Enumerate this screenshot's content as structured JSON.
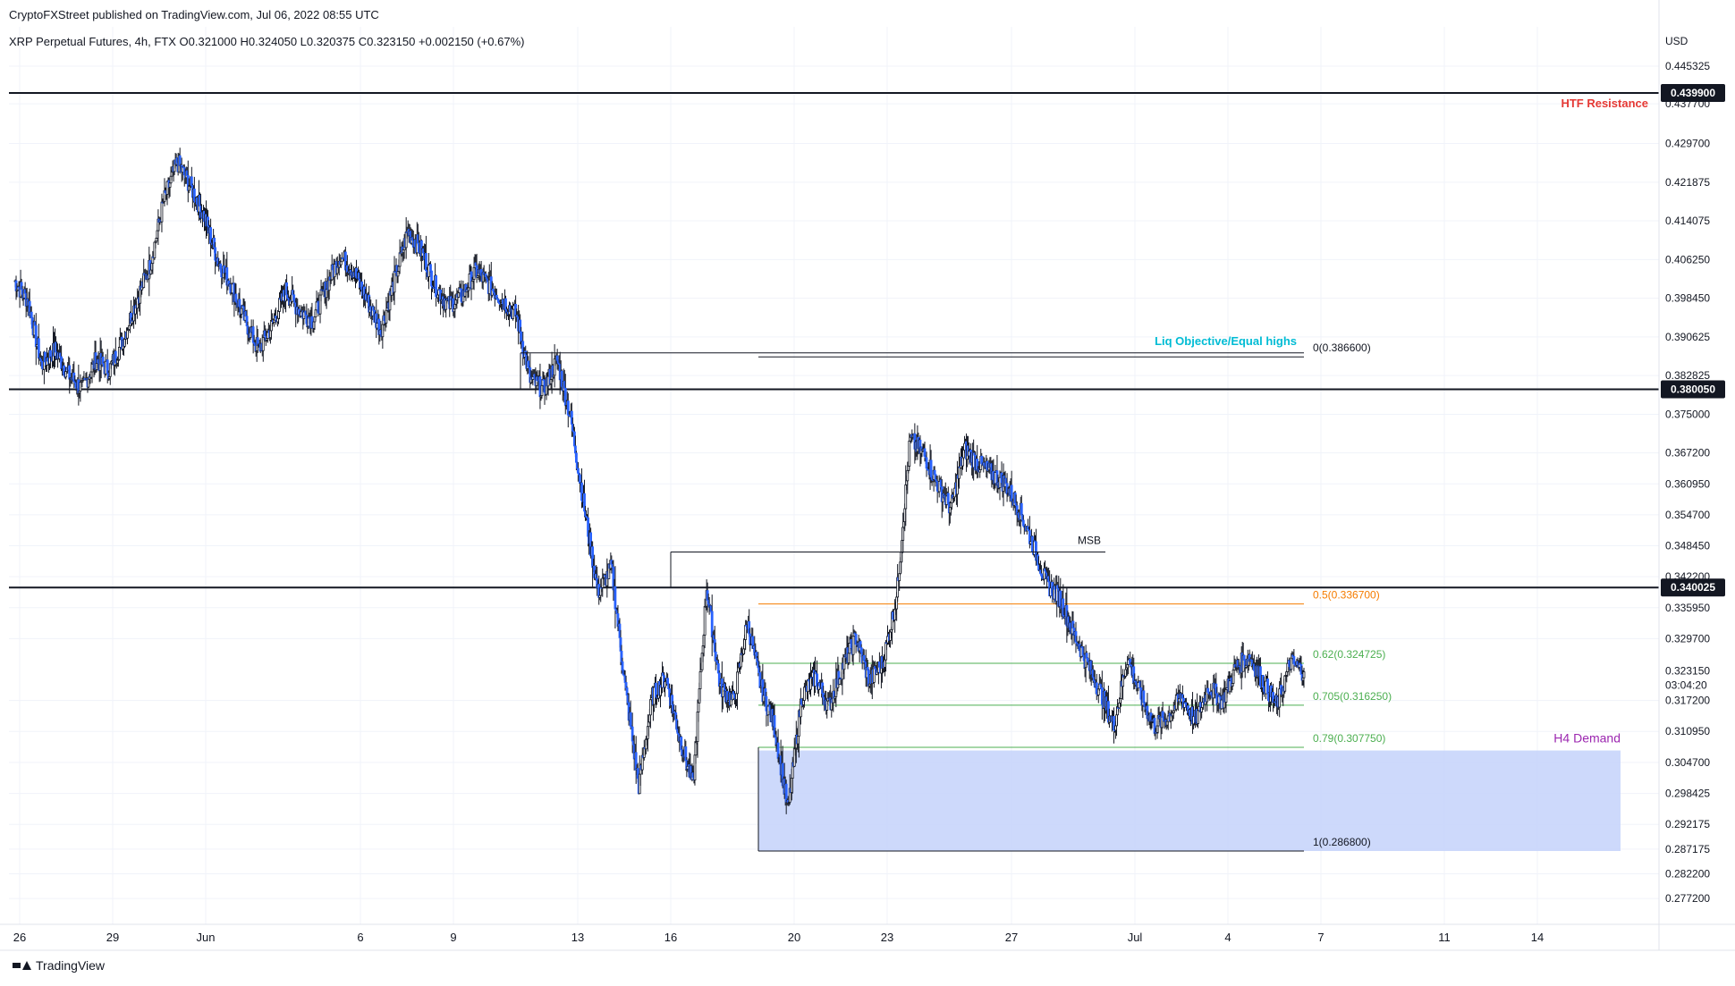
{
  "header": {
    "publisher": "CryptoFXStreet published on TradingView.com, Jul 06, 2022 08:55 UTC",
    "symbol_line": "XRP Perpetual Futures, 4h, FTX  O0.321000  H0.324050  L0.320375  C0.323150  +0.002150 (+0.67%)"
  },
  "footer": {
    "brand": "TradingView"
  },
  "colors": {
    "bull": "#ffffff",
    "bear": "#2962ff",
    "wick": "#131722",
    "orange": "#f57c00",
    "green": "#4caf50",
    "resistance_text": "#e53935",
    "liq_text": "#00bcd4",
    "demand_text": "#9c27b0",
    "demand_fill": "#c8d5fb"
  },
  "chart_data": {
    "type": "candlestick",
    "currency": "USD",
    "ylim": [
      0.2735,
      0.45
    ],
    "y_ticks": [
      0.445325,
      0.4377,
      0.4297,
      0.421875,
      0.414075,
      0.40625,
      0.39845,
      0.390625,
      0.382825,
      0.375,
      0.3672,
      0.36095,
      0.3547,
      0.34845,
      0.3422,
      0.33595,
      0.3297,
      0.3172,
      0.31095,
      0.3047,
      0.298425,
      0.292175,
      0.287175,
      0.2822,
      0.2772
    ],
    "y_tick_labels": [
      "0.445325",
      "0.437700",
      "0.429700",
      "0.421875",
      "0.414075",
      "0.406250",
      "0.398450",
      "0.390625",
      "0.382825",
      "0.375000",
      "0.367200",
      "0.360950",
      "0.354700",
      "0.348450",
      "0.342200",
      "0.335950",
      "0.329700",
      "0.317200",
      "0.310950",
      "0.304700",
      "0.298425",
      "0.292175",
      "0.287175",
      "0.282200",
      "0.277200"
    ],
    "x_labels": [
      "26",
      "29",
      "Jun",
      "6",
      "9",
      "13",
      "16",
      "20",
      "23",
      "27",
      "Jul",
      "4",
      "7",
      "11",
      "14"
    ],
    "price_now": {
      "value": 0.32315,
      "label": "0.323150",
      "countdown": "03:04:20"
    },
    "horizontal_levels": [
      {
        "value": 0.4399,
        "label": "0.439900"
      },
      {
        "value": 0.38005,
        "label": "0.380050"
      },
      {
        "value": 0.340025,
        "label": "0.340025"
      }
    ],
    "annotations": {
      "htf_resistance": "HTF Resistance",
      "liq_objective": "Liq Objective/Equal highs",
      "msb": "MSB",
      "h4_demand": "H4 Demand"
    },
    "fib_levels": [
      {
        "ratio": "0",
        "value": 0.3866,
        "label": "0(0.386600)",
        "color": "#131722"
      },
      {
        "ratio": "0.5",
        "value": 0.3367,
        "label": "0.5(0.336700)",
        "color": "#f57c00"
      },
      {
        "ratio": "0.62",
        "value": 0.324725,
        "label": "0.62(0.324725)",
        "color": "#4caf50"
      },
      {
        "ratio": "0.705",
        "value": 0.31625,
        "label": "0.705(0.316250)",
        "color": "#4caf50"
      },
      {
        "ratio": "0.79",
        "value": 0.30775,
        "label": "0.79(0.307750)",
        "color": "#4caf50"
      },
      {
        "ratio": "1",
        "value": 0.2868,
        "label": "1(0.286800)",
        "color": "#131722"
      }
    ],
    "demand_zone": {
      "top": 0.3071,
      "bottom": 0.2868
    },
    "msb_level": 0.3472,
    "liq_level": 0.3874,
    "price_path": [
      0.402,
      0.398,
      0.385,
      0.388,
      0.383,
      0.38,
      0.386,
      0.384,
      0.39,
      0.398,
      0.405,
      0.418,
      0.426,
      0.421,
      0.415,
      0.406,
      0.401,
      0.394,
      0.388,
      0.393,
      0.4,
      0.396,
      0.394,
      0.401,
      0.407,
      0.404,
      0.398,
      0.392,
      0.402,
      0.412,
      0.408,
      0.401,
      0.397,
      0.399,
      0.404,
      0.401,
      0.398,
      0.395,
      0.382,
      0.38,
      0.386,
      0.374,
      0.356,
      0.339,
      0.344,
      0.32,
      0.3,
      0.318,
      0.322,
      0.31,
      0.3,
      0.34,
      0.32,
      0.317,
      0.333,
      0.32,
      0.312,
      0.295,
      0.318,
      0.322,
      0.316,
      0.324,
      0.33,
      0.321,
      0.325,
      0.338,
      0.37,
      0.367,
      0.361,
      0.356,
      0.368,
      0.365,
      0.363,
      0.361,
      0.356,
      0.349,
      0.341,
      0.338,
      0.331,
      0.325,
      0.319,
      0.312,
      0.326,
      0.318,
      0.312,
      0.314,
      0.318,
      0.313,
      0.32,
      0.317,
      0.324,
      0.326,
      0.321,
      0.316,
      0.325,
      0.323
    ]
  }
}
